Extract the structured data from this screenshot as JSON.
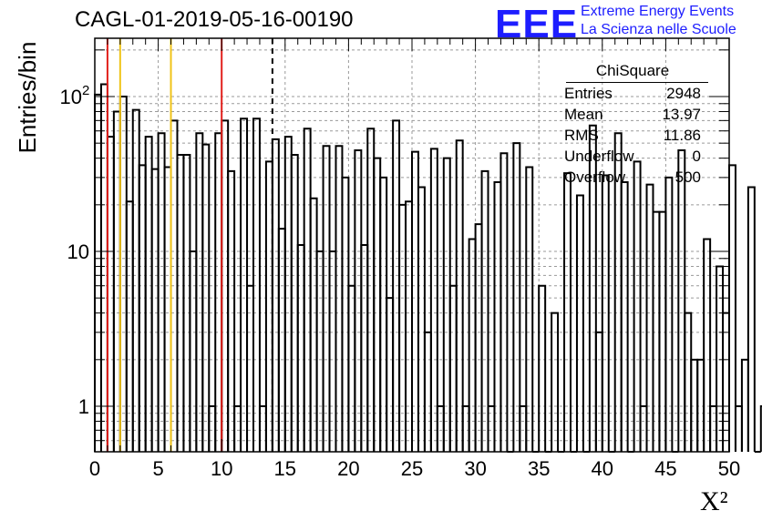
{
  "chart_data": {
    "type": "bar",
    "title": "CAGL-01-2019-05-16-00190",
    "xlabel": "X²",
    "ylabel": "Entries/bin",
    "xlim": [
      0,
      50
    ],
    "ylim": [
      0.5,
      250
    ],
    "yscale": "log",
    "grid": true,
    "bin_width": 0.5,
    "x_ticks": [
      "0",
      "5",
      "10",
      "15",
      "20",
      "25",
      "30",
      "35",
      "40",
      "45",
      "50"
    ],
    "y_ticks": [
      {
        "value": 1,
        "label": "1"
      },
      {
        "value": 10,
        "label": "10"
      },
      {
        "value": 100,
        "label": "10",
        "sup": "2"
      }
    ],
    "values": [
      103,
      120,
      55,
      80,
      100,
      21,
      82,
      36,
      55,
      34,
      58,
      35,
      70,
      42,
      42,
      10,
      58,
      49,
      1,
      58,
      70,
      33,
      1,
      72,
      6,
      72,
      1,
      38,
      53,
      14,
      55,
      42,
      11,
      62,
      22,
      10,
      48,
      10,
      48,
      30,
      6,
      45,
      11,
      62,
      40,
      30,
      5,
      70,
      20,
      21,
      44,
      26,
      3,
      46,
      1,
      40,
      6,
      52,
      1,
      12,
      15,
      33,
      1,
      28,
      43,
      0,
      50,
      1,
      35,
      0,
      6,
      0,
      4,
      0,
      32,
      0,
      23,
      0,
      65,
      3,
      31,
      0,
      58,
      28,
      0,
      38,
      1,
      27,
      18,
      18,
      30,
      0,
      45,
      4,
      2,
      2,
      12,
      1,
      8,
      4,
      36,
      1,
      2,
      26,
      0,
      1,
      22,
      21,
      1,
      0,
      10,
      0,
      21,
      8,
      2,
      1,
      6,
      1,
      2,
      18,
      0,
      1,
      1,
      17,
      1,
      1,
      1,
      15,
      0,
      12,
      0,
      1,
      20,
      21,
      0,
      14,
      0,
      0,
      40,
      15,
      0,
      0,
      36,
      19,
      40,
      0,
      0,
      44,
      13,
      0,
      20,
      0,
      0,
      20
    ],
    "markers": [
      {
        "x": 1,
        "color": "#e2201c"
      },
      {
        "x": 2,
        "color": "#f0c419"
      },
      {
        "x": 6,
        "color": "#f0c419"
      },
      {
        "x": 10,
        "color": "#e2201c"
      },
      {
        "x": 14,
        "color": "#000000",
        "dashed": true
      }
    ],
    "stats": {
      "title": "ChiSquare",
      "rows": [
        {
          "label": "Entries",
          "value": "2948"
        },
        {
          "label": "Mean",
          "value": "13.97"
        },
        {
          "label": "RMS",
          "value": "11.86"
        },
        {
          "label": "Underflow",
          "value": "0"
        },
        {
          "label": "Overflow",
          "value": "500"
        }
      ]
    },
    "logo": {
      "text": "EEE",
      "line1": "Extreme Energy Events",
      "line2": "La Scienza nelle Scuole",
      "color": "#1d1dff"
    }
  }
}
